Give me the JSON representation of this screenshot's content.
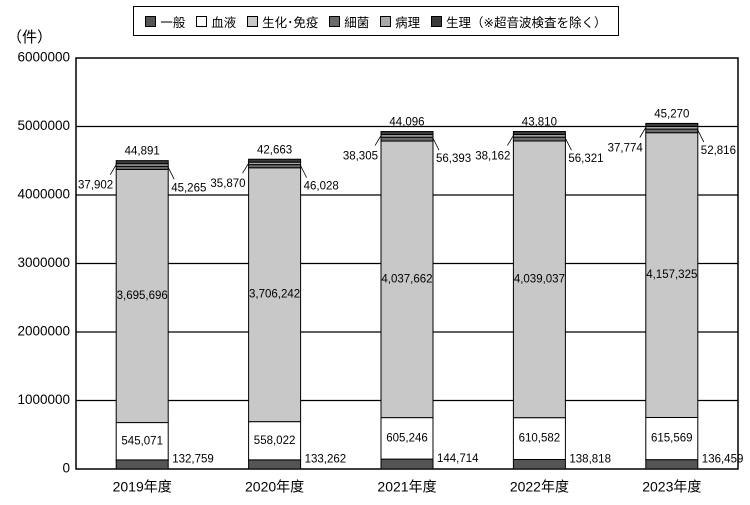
{
  "unit_label": "（件）",
  "legend": [
    {
      "label": "一般",
      "color": "#555555"
    },
    {
      "label": "血液",
      "color": "#ffffff"
    },
    {
      "label": "生化･免疫",
      "color": "#c8c8c8"
    },
    {
      "label": "細菌",
      "color": "#6b6b6b"
    },
    {
      "label": "病理",
      "color": "#a8a8a8"
    },
    {
      "label": "生理（※超音波検査を除く）",
      "color": "#3a3a3a"
    }
  ],
  "chart_data": {
    "type": "bar",
    "stacked": true,
    "categories": [
      "2019年度",
      "2020年度",
      "2021年度",
      "2022年度",
      "2023年度"
    ],
    "ylim": [
      0,
      6000000
    ],
    "yticks": [
      "0",
      "1000000",
      "2000000",
      "3000000",
      "4000000",
      "5000000",
      "6000000"
    ],
    "grid": true,
    "legend_position": "top",
    "series": [
      {
        "name": "一般",
        "values": [
          132759,
          133262,
          144714,
          138818,
          136459
        ],
        "labels": [
          "132,759",
          "133,262",
          "144,714",
          "138,818",
          "136,459"
        ]
      },
      {
        "name": "血液",
        "values": [
          545071,
          558022,
          605246,
          610582,
          615569
        ],
        "labels": [
          "545,071",
          "558,022",
          "605,246",
          "610,582",
          "615,569"
        ]
      },
      {
        "name": "生化･免疫",
        "values": [
          3695696,
          3706242,
          4037662,
          4039037,
          4157325
        ],
        "labels": [
          "3,695,696",
          "3,706,242",
          "4,037,662",
          "4,039,037",
          "4,157,325"
        ]
      },
      {
        "name": "細菌",
        "values": [
          45265,
          46028,
          56393,
          56321,
          52816
        ],
        "labels": [
          "45,265",
          "46,028",
          "56,393",
          "56,321",
          "52,816"
        ]
      },
      {
        "name": "病理",
        "values": [
          37902,
          35870,
          38305,
          38162,
          37774
        ],
        "labels": [
          "37,902",
          "35,870",
          "38,305",
          "38,162",
          "37,774"
        ]
      },
      {
        "name": "生理（※超音波検査を除く）",
        "values": [
          44891,
          42663,
          44096,
          43810,
          45270
        ],
        "labels": [
          "44,891",
          "42,663",
          "44,096",
          "43,810",
          "45,270"
        ]
      }
    ]
  }
}
